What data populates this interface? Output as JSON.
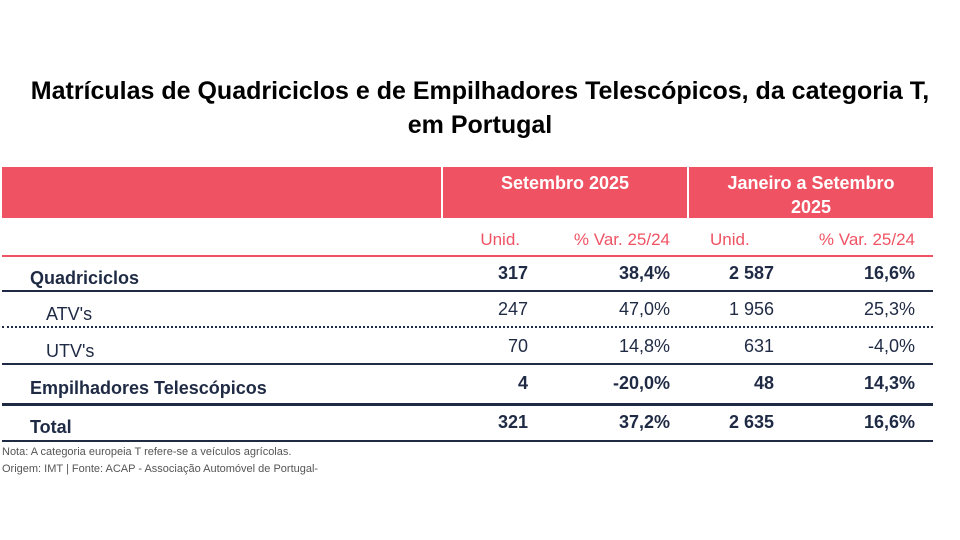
{
  "title": {
    "line1": "Matrículas de Quadriciclos e de Empilhadores Telescópicos, da categoria T,",
    "line2": "em Portugal"
  },
  "header": {
    "period1": "Setembro 2025",
    "period2_line1": "Janeiro a Setembro",
    "period2_line2": "2025"
  },
  "subheader": {
    "unid1": "Unid.",
    "var1": "% Var. 25/24",
    "unid2": "Unid.",
    "var2": "% Var. 25/24"
  },
  "rows": [
    {
      "label": "Quadriciclos",
      "unid_set": "317",
      "var_set": "38,4%",
      "unid_ytd": "2 587",
      "var_ytd": "16,6%"
    },
    {
      "label": "ATV's",
      "unid_set": "247",
      "var_set": "47,0%",
      "unid_ytd": "1 956",
      "var_ytd": "25,3%"
    },
    {
      "label": "UTV's",
      "unid_set": "70",
      "var_set": "14,8%",
      "unid_ytd": "631",
      "var_ytd": "-4,0%"
    },
    {
      "label": "Empilhadores Telescópicos",
      "unid_set": "4",
      "var_set": "-20,0%",
      "unid_ytd": "48",
      "var_ytd": "14,3%"
    },
    {
      "label": "Total",
      "unid_set": "321",
      "var_set": "37,2%",
      "unid_ytd": "2 635",
      "var_ytd": "16,6%"
    }
  ],
  "notes": {
    "note": "Nota: A categoria europeia T refere-se a veículos agrícolas.",
    "source": "Origem: IMT | Fonte: ACAP - Associação Automóvel de Portugal-"
  },
  "colors": {
    "accent": "#ef5363",
    "text": "#1f2a44"
  }
}
